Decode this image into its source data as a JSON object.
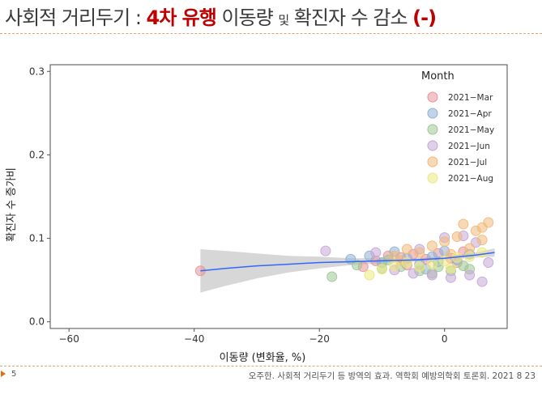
{
  "slide": {
    "title": {
      "part1": "사회적 거리두기 : ",
      "highlight": "4차 유행",
      "part2": " 이동량 ",
      "connector": "및",
      "part3": " 확진자 수 감소 ",
      "sign": "(-)"
    },
    "page_number": "5",
    "citation": "오주한. 사회적 거리두기 등 방역의 효과. 역학회 예방의학회 토론회. 2021 8 23"
  },
  "colors": {
    "title_red": "#c00000",
    "rule_orange": "#e7a36f",
    "smooth_line": "#3366ff",
    "ci_band": "#bdbdbd"
  },
  "chart_data": {
    "type": "scatter",
    "xlabel": "이동량 (변화율, %)",
    "ylabel": "확진자 수 증가비",
    "xlim": [
      -63,
      10
    ],
    "ylim": [
      -0.008,
      0.308
    ],
    "x_ticks": [
      -60,
      -40,
      -20,
      0
    ],
    "y_ticks": [
      0.0,
      0.1,
      0.2,
      0.3
    ],
    "x_tick_labels": [
      "−60",
      "−40",
      "−20",
      "0"
    ],
    "y_tick_labels": [
      "0.0",
      "0.1",
      "0.2",
      "0.3"
    ],
    "legend": {
      "title": "Month",
      "position": "top-right"
    },
    "series": [
      {
        "name": "2021−Mar",
        "color": "#e6949a",
        "points": [
          [
            -39,
            0.061
          ],
          [
            -11,
            0.073
          ],
          [
            -9,
            0.079
          ],
          [
            -7,
            0.077
          ],
          [
            -5,
            0.081
          ],
          [
            -3,
            0.075
          ],
          [
            -1,
            0.082
          ],
          [
            1,
            0.076
          ],
          [
            3,
            0.084
          ],
          [
            -6,
            0.068
          ],
          [
            2,
            0.071
          ],
          [
            -13,
            0.066
          ]
        ]
      },
      {
        "name": "2021−Apr",
        "color": "#8fb1d6",
        "points": [
          [
            -12,
            0.079
          ],
          [
            -10,
            0.071
          ],
          [
            -8,
            0.084
          ],
          [
            -6,
            0.076
          ],
          [
            -4,
            0.069
          ],
          [
            -2,
            0.078
          ],
          [
            0,
            0.085
          ],
          [
            2,
            0.074
          ],
          [
            4,
            0.081
          ],
          [
            -1,
            0.072
          ],
          [
            -15,
            0.075
          ],
          [
            -3,
            0.063
          ]
        ]
      },
      {
        "name": "2021−May",
        "color": "#9ec793",
        "points": [
          [
            -18,
            0.054
          ],
          [
            -14,
            0.068
          ],
          [
            -10,
            0.064
          ],
          [
            -7,
            0.066
          ],
          [
            -4,
            0.061
          ],
          [
            -1,
            0.066
          ],
          [
            1,
            0.061
          ],
          [
            4,
            0.063
          ],
          [
            -9,
            0.074
          ],
          [
            -2,
            0.058
          ],
          [
            3,
            0.067
          ]
        ]
      },
      {
        "name": "2021−Jun",
        "color": "#c4a7d6",
        "points": [
          [
            -19,
            0.085
          ],
          [
            -11,
            0.083
          ],
          [
            -8,
            0.062
          ],
          [
            -5,
            0.058
          ],
          [
            -2,
            0.056
          ],
          [
            1,
            0.053
          ],
          [
            4,
            0.056
          ],
          [
            6,
            0.048
          ],
          [
            7,
            0.071
          ],
          [
            3,
            0.103
          ],
          [
            5,
            0.095
          ],
          [
            -4,
            0.087
          ],
          [
            0,
            0.101
          ]
        ]
      },
      {
        "name": "2021−Jul",
        "color": "#f0b97a",
        "points": [
          [
            -8,
            0.079
          ],
          [
            -6,
            0.087
          ],
          [
            -4,
            0.083
          ],
          [
            -2,
            0.091
          ],
          [
            0,
            0.096
          ],
          [
            2,
            0.102
          ],
          [
            3,
            0.117
          ],
          [
            5,
            0.109
          ],
          [
            6,
            0.113
          ],
          [
            7,
            0.119
          ],
          [
            4,
            0.088
          ],
          [
            -7,
            0.073
          ],
          [
            1,
            0.081
          ],
          [
            6,
            0.098
          ]
        ]
      },
      {
        "name": "2021−Aug",
        "color": "#ece881",
        "points": [
          [
            -10,
            0.063
          ],
          [
            -8,
            0.067
          ],
          [
            -6,
            0.071
          ],
          [
            -4,
            0.066
          ],
          [
            -2,
            0.069
          ],
          [
            0,
            0.073
          ],
          [
            2,
            0.077
          ],
          [
            4,
            0.078
          ],
          [
            6,
            0.083
          ],
          [
            -12,
            0.056
          ],
          [
            1,
            0.064
          ]
        ]
      }
    ],
    "smooth": {
      "x": [
        -39,
        -35,
        -30,
        -25,
        -20,
        -15,
        -10,
        -5,
        0,
        5,
        8
      ],
      "y": [
        0.061,
        0.064,
        0.067,
        0.069,
        0.071,
        0.072,
        0.073,
        0.074,
        0.076,
        0.08,
        0.083
      ],
      "ymin": [
        0.035,
        0.043,
        0.052,
        0.059,
        0.064,
        0.068,
        0.07,
        0.072,
        0.074,
        0.077,
        0.078
      ],
      "ymax": [
        0.087,
        0.085,
        0.082,
        0.079,
        0.078,
        0.076,
        0.076,
        0.076,
        0.078,
        0.083,
        0.088
      ]
    }
  }
}
